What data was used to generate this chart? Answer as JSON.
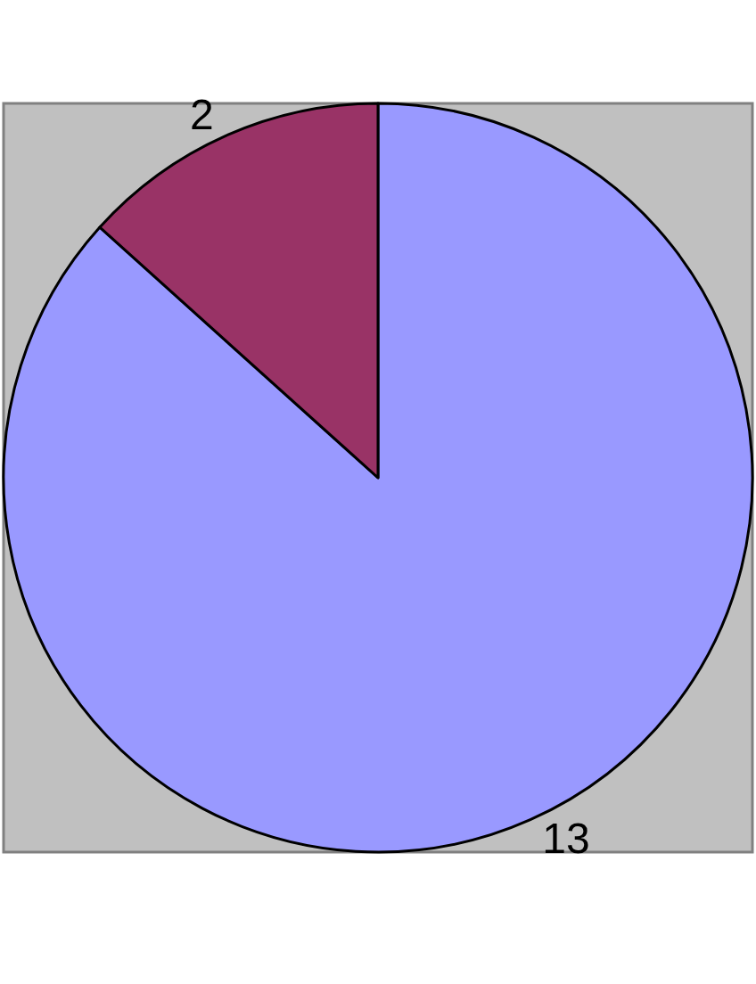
{
  "chart_data": {
    "type": "pie",
    "categories": [
      null,
      null
    ],
    "values": [
      13,
      2
    ],
    "colors": [
      "#9999ff",
      "#993366"
    ],
    "data_labels": true,
    "legend": false
  }
}
